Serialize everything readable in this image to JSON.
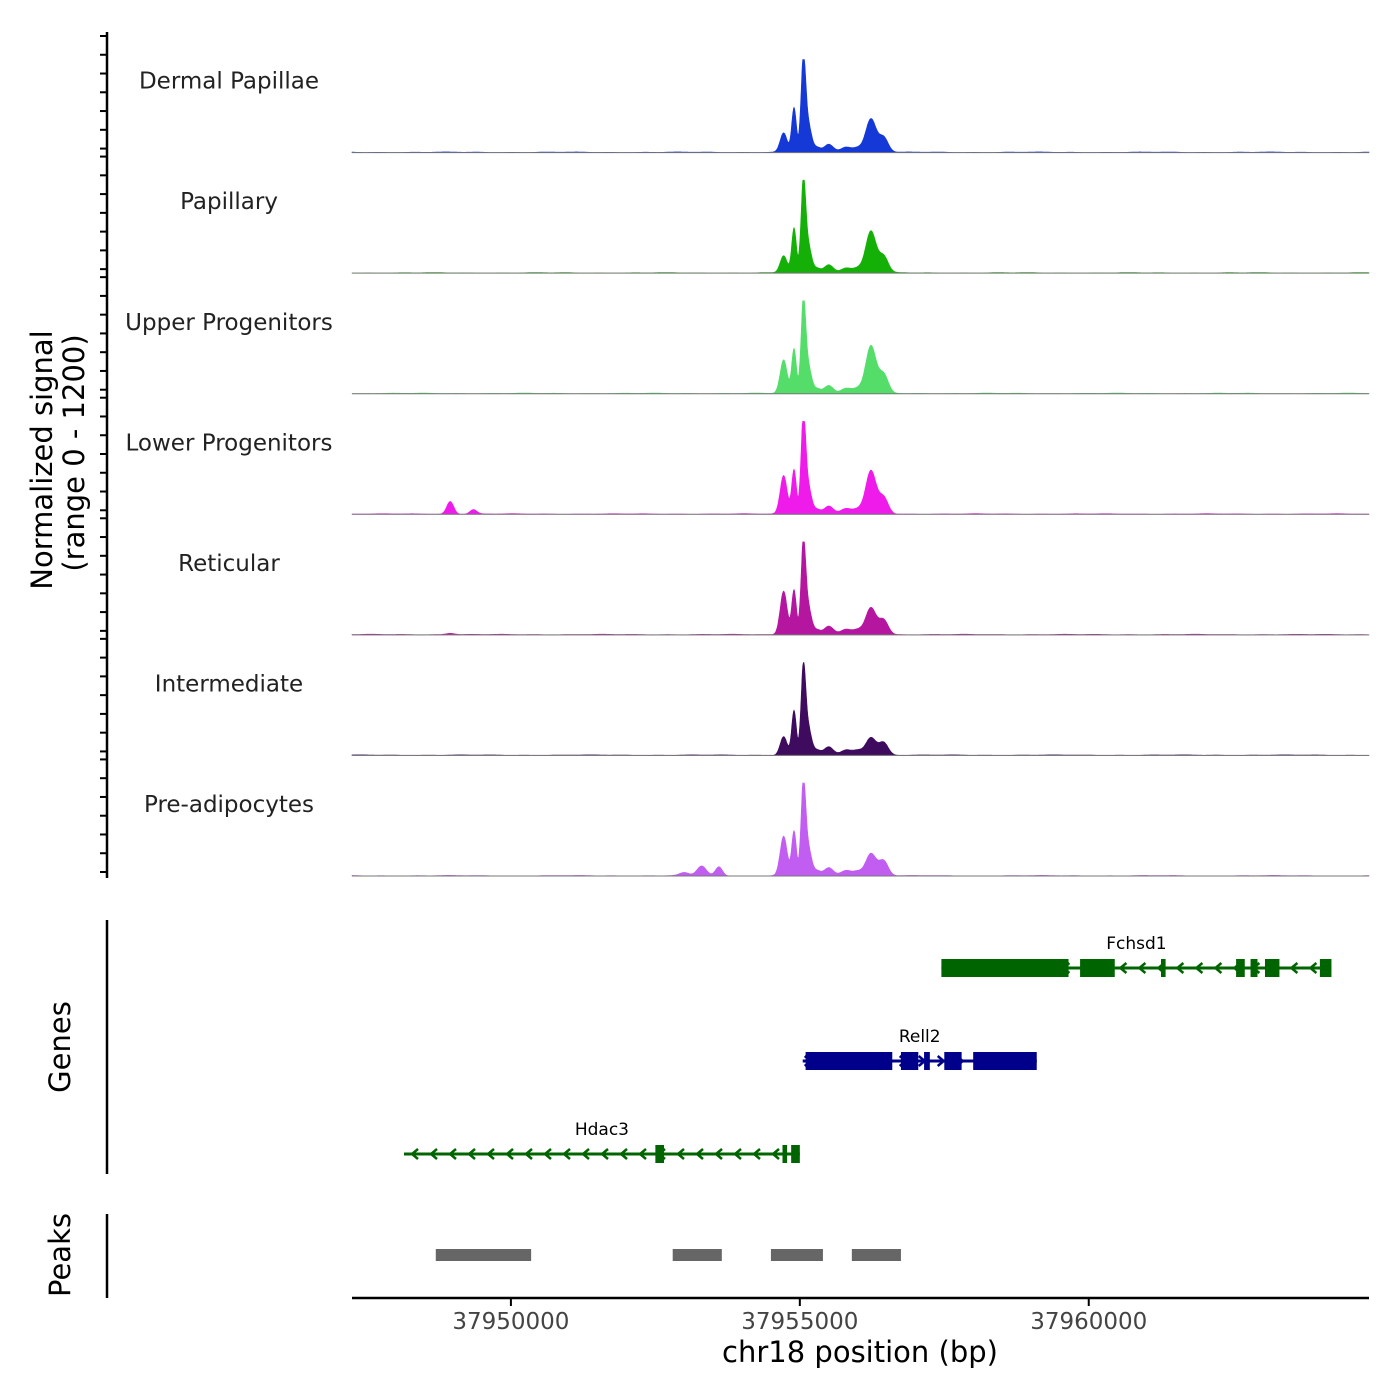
{
  "chart_data": {
    "type": "area",
    "genome_region": "chr18",
    "xlim": [
      37947250,
      37964850
    ],
    "xlabel": "chr18 position (bp)",
    "x_ticks": [
      37950000,
      37955000,
      37960000
    ],
    "x_tick_labels": [
      "37950000",
      "37955000",
      "37960000"
    ],
    "signal_ylabel_line1": "Normalized signal",
    "signal_ylabel_line2": "(range 0 - 1200)",
    "signal_range": [
      0,
      1200
    ],
    "tracks": [
      {
        "name": "Dermal Papillae",
        "color": "#1539d6",
        "extra_peaks": [],
        "peaks": [
          [
            37954900,
            600,
            40
          ],
          [
            37955060,
            1180,
            40
          ],
          [
            37955140,
            380,
            60
          ],
          [
            37954720,
            260,
            60
          ],
          [
            37956230,
            450,
            90
          ],
          [
            37956450,
            200,
            80
          ],
          [
            37955500,
            110,
            80
          ],
          [
            37955800,
            70,
            90
          ],
          [
            37955300,
            60,
            60
          ],
          [
            37956000,
            60,
            80
          ]
        ]
      },
      {
        "name": "Papillary",
        "color": "#14b007",
        "extra_peaks": [],
        "peaks": [
          [
            37954900,
            600,
            40
          ],
          [
            37955060,
            1150,
            40
          ],
          [
            37955140,
            380,
            60
          ],
          [
            37954720,
            230,
            60
          ],
          [
            37956230,
            560,
            90
          ],
          [
            37956450,
            220,
            80
          ],
          [
            37955500,
            110,
            80
          ],
          [
            37955800,
            70,
            90
          ],
          [
            37955300,
            60,
            60
          ],
          [
            37956000,
            60,
            80
          ]
        ]
      },
      {
        "name": "Upper Progenitors",
        "color": "#55dd6a",
        "extra_peaks": [],
        "peaks": [
          [
            37954900,
            600,
            40
          ],
          [
            37955060,
            1160,
            40
          ],
          [
            37955140,
            380,
            60
          ],
          [
            37954720,
            450,
            60
          ],
          [
            37956230,
            640,
            90
          ],
          [
            37956450,
            250,
            80
          ],
          [
            37955500,
            110,
            80
          ],
          [
            37955800,
            70,
            90
          ],
          [
            37955300,
            60,
            60
          ],
          [
            37956000,
            60,
            80
          ]
        ]
      },
      {
        "name": "Lower Progenitors",
        "color": "#ef1bea",
        "extra_peaks": [
          [
            37948950,
            170,
            60
          ],
          [
            37949350,
            60,
            60
          ]
        ],
        "peaks": [
          [
            37954900,
            600,
            40
          ],
          [
            37955060,
            1240,
            40
          ],
          [
            37955140,
            380,
            60
          ],
          [
            37954720,
            520,
            60
          ],
          [
            37956230,
            580,
            90
          ],
          [
            37956450,
            220,
            80
          ],
          [
            37955500,
            110,
            80
          ],
          [
            37955800,
            70,
            90
          ],
          [
            37955300,
            60,
            60
          ],
          [
            37956000,
            60,
            80
          ]
        ]
      },
      {
        "name": "Reticular",
        "color": "#b5169f",
        "extra_peaks": [
          [
            37948950,
            20,
            80
          ]
        ],
        "peaks": [
          [
            37954900,
            600,
            40
          ],
          [
            37955060,
            1160,
            40
          ],
          [
            37955140,
            380,
            60
          ],
          [
            37954720,
            590,
            60
          ],
          [
            37956230,
            360,
            90
          ],
          [
            37956450,
            200,
            80
          ],
          [
            37955500,
            110,
            80
          ],
          [
            37955800,
            70,
            90
          ],
          [
            37955300,
            60,
            60
          ],
          [
            37956000,
            60,
            80
          ]
        ]
      },
      {
        "name": "Intermediate",
        "color": "#3e0b5f",
        "extra_peaks": [],
        "peaks": [
          [
            37954900,
            600,
            40
          ],
          [
            37955060,
            1110,
            40
          ],
          [
            37955140,
            380,
            60
          ],
          [
            37954720,
            250,
            60
          ],
          [
            37956230,
            240,
            90
          ],
          [
            37956450,
            170,
            80
          ],
          [
            37955500,
            110,
            80
          ],
          [
            37955800,
            70,
            90
          ],
          [
            37955300,
            60,
            60
          ],
          [
            37956000,
            60,
            80
          ]
        ]
      },
      {
        "name": "Pre-adipocytes",
        "color": "#c15df0",
        "extra_peaks": [
          [
            37953300,
            130,
            80
          ],
          [
            37953600,
            120,
            60
          ],
          [
            37953000,
            40,
            80
          ]
        ],
        "peaks": [
          [
            37954900,
            600,
            40
          ],
          [
            37955060,
            1170,
            40
          ],
          [
            37955140,
            380,
            60
          ],
          [
            37954720,
            530,
            60
          ],
          [
            37956230,
            300,
            90
          ],
          [
            37956450,
            200,
            80
          ],
          [
            37955500,
            110,
            80
          ],
          [
            37955800,
            70,
            90
          ],
          [
            37955300,
            60,
            60
          ],
          [
            37956000,
            60,
            80
          ]
        ]
      }
    ],
    "genes_label": "Genes",
    "genes": [
      {
        "name": "Fchsd1",
        "strand": "-",
        "color": "#006400",
        "start": 37957450,
        "end": 37964200,
        "row": 1,
        "exons": [
          [
            37957450,
            37959650
          ],
          [
            37959850,
            37960450
          ],
          [
            37961250,
            37961330
          ],
          [
            37962550,
            37962700
          ],
          [
            37962800,
            37962920
          ],
          [
            37963050,
            37963300
          ],
          [
            37964000,
            37964200
          ]
        ]
      },
      {
        "name": "Rell2",
        "strand": "+",
        "color": "#00008b",
        "start": 37955050,
        "end": 37959100,
        "row": 2,
        "exons": [
          [
            37955100,
            37956600
          ],
          [
            37956750,
            37957050
          ],
          [
            37957150,
            37957250
          ],
          [
            37957500,
            37957800
          ],
          [
            37958000,
            37959100
          ]
        ]
      },
      {
        "name": "Hdac3",
        "strand": "-",
        "color": "#006400",
        "start": 37948150,
        "end": 37955000,
        "row": 3,
        "exons": [
          [
            37952500,
            37952650
          ],
          [
            37954700,
            37954780
          ],
          [
            37954850,
            37955000
          ]
        ]
      }
    ],
    "peaks_label": "Peaks",
    "peaks_color": "#666666",
    "peak_regions": [
      [
        37948700,
        37950350
      ],
      [
        37952800,
        37953650
      ],
      [
        37954500,
        37955400
      ],
      [
        37955900,
        37956750
      ]
    ]
  }
}
